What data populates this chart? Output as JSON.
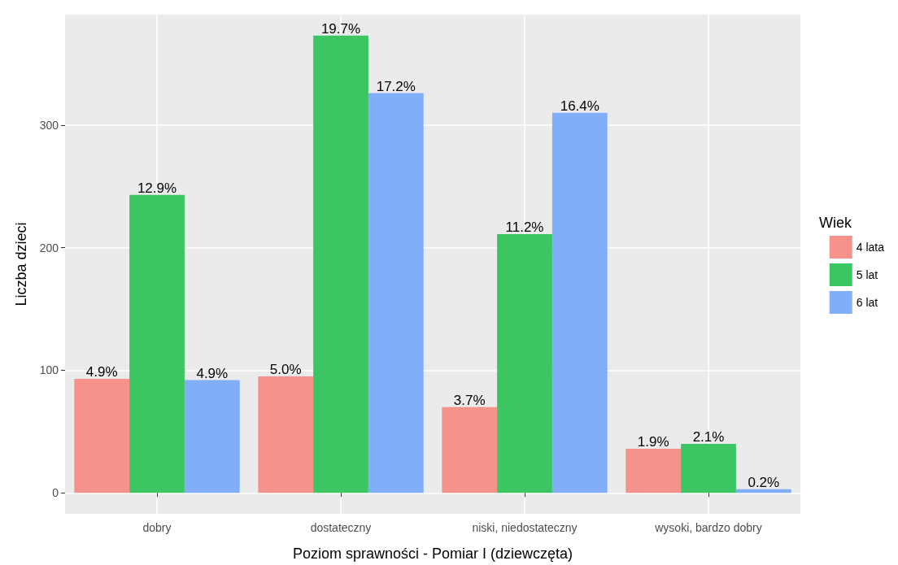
{
  "chart_data": {
    "type": "bar",
    "xlabel": "Poziom sprawności - Pomiar I (dziewczęta)",
    "ylabel": "Liczba dzieci",
    "legend_title": "Wiek",
    "categories": [
      "dobry",
      "dostateczny",
      "niski, niedostateczny",
      "wysoki, bardzo dobry"
    ],
    "series": [
      {
        "name": "4 lata",
        "color": "#f4928b",
        "values": [
          93,
          95,
          70,
          36
        ]
      },
      {
        "name": "5 lat",
        "color": "#3cc663",
        "values": [
          243,
          373,
          211,
          40
        ]
      },
      {
        "name": "6 lat",
        "color": "#80aef8",
        "values": [
          92,
          326,
          310,
          3
        ]
      }
    ],
    "annotations": [
      "4.9%",
      "5.0%",
      "3.7%",
      "1.9%",
      "12.9%",
      "19.7%",
      "11.2%",
      "2.1%",
      "4.9%",
      "17.2%",
      "16.4%",
      "0.2%"
    ],
    "ylim": [
      -17,
      390
    ],
    "yticks": [
      0,
      100,
      200,
      300
    ],
    "grid": true,
    "legend": "right"
  }
}
